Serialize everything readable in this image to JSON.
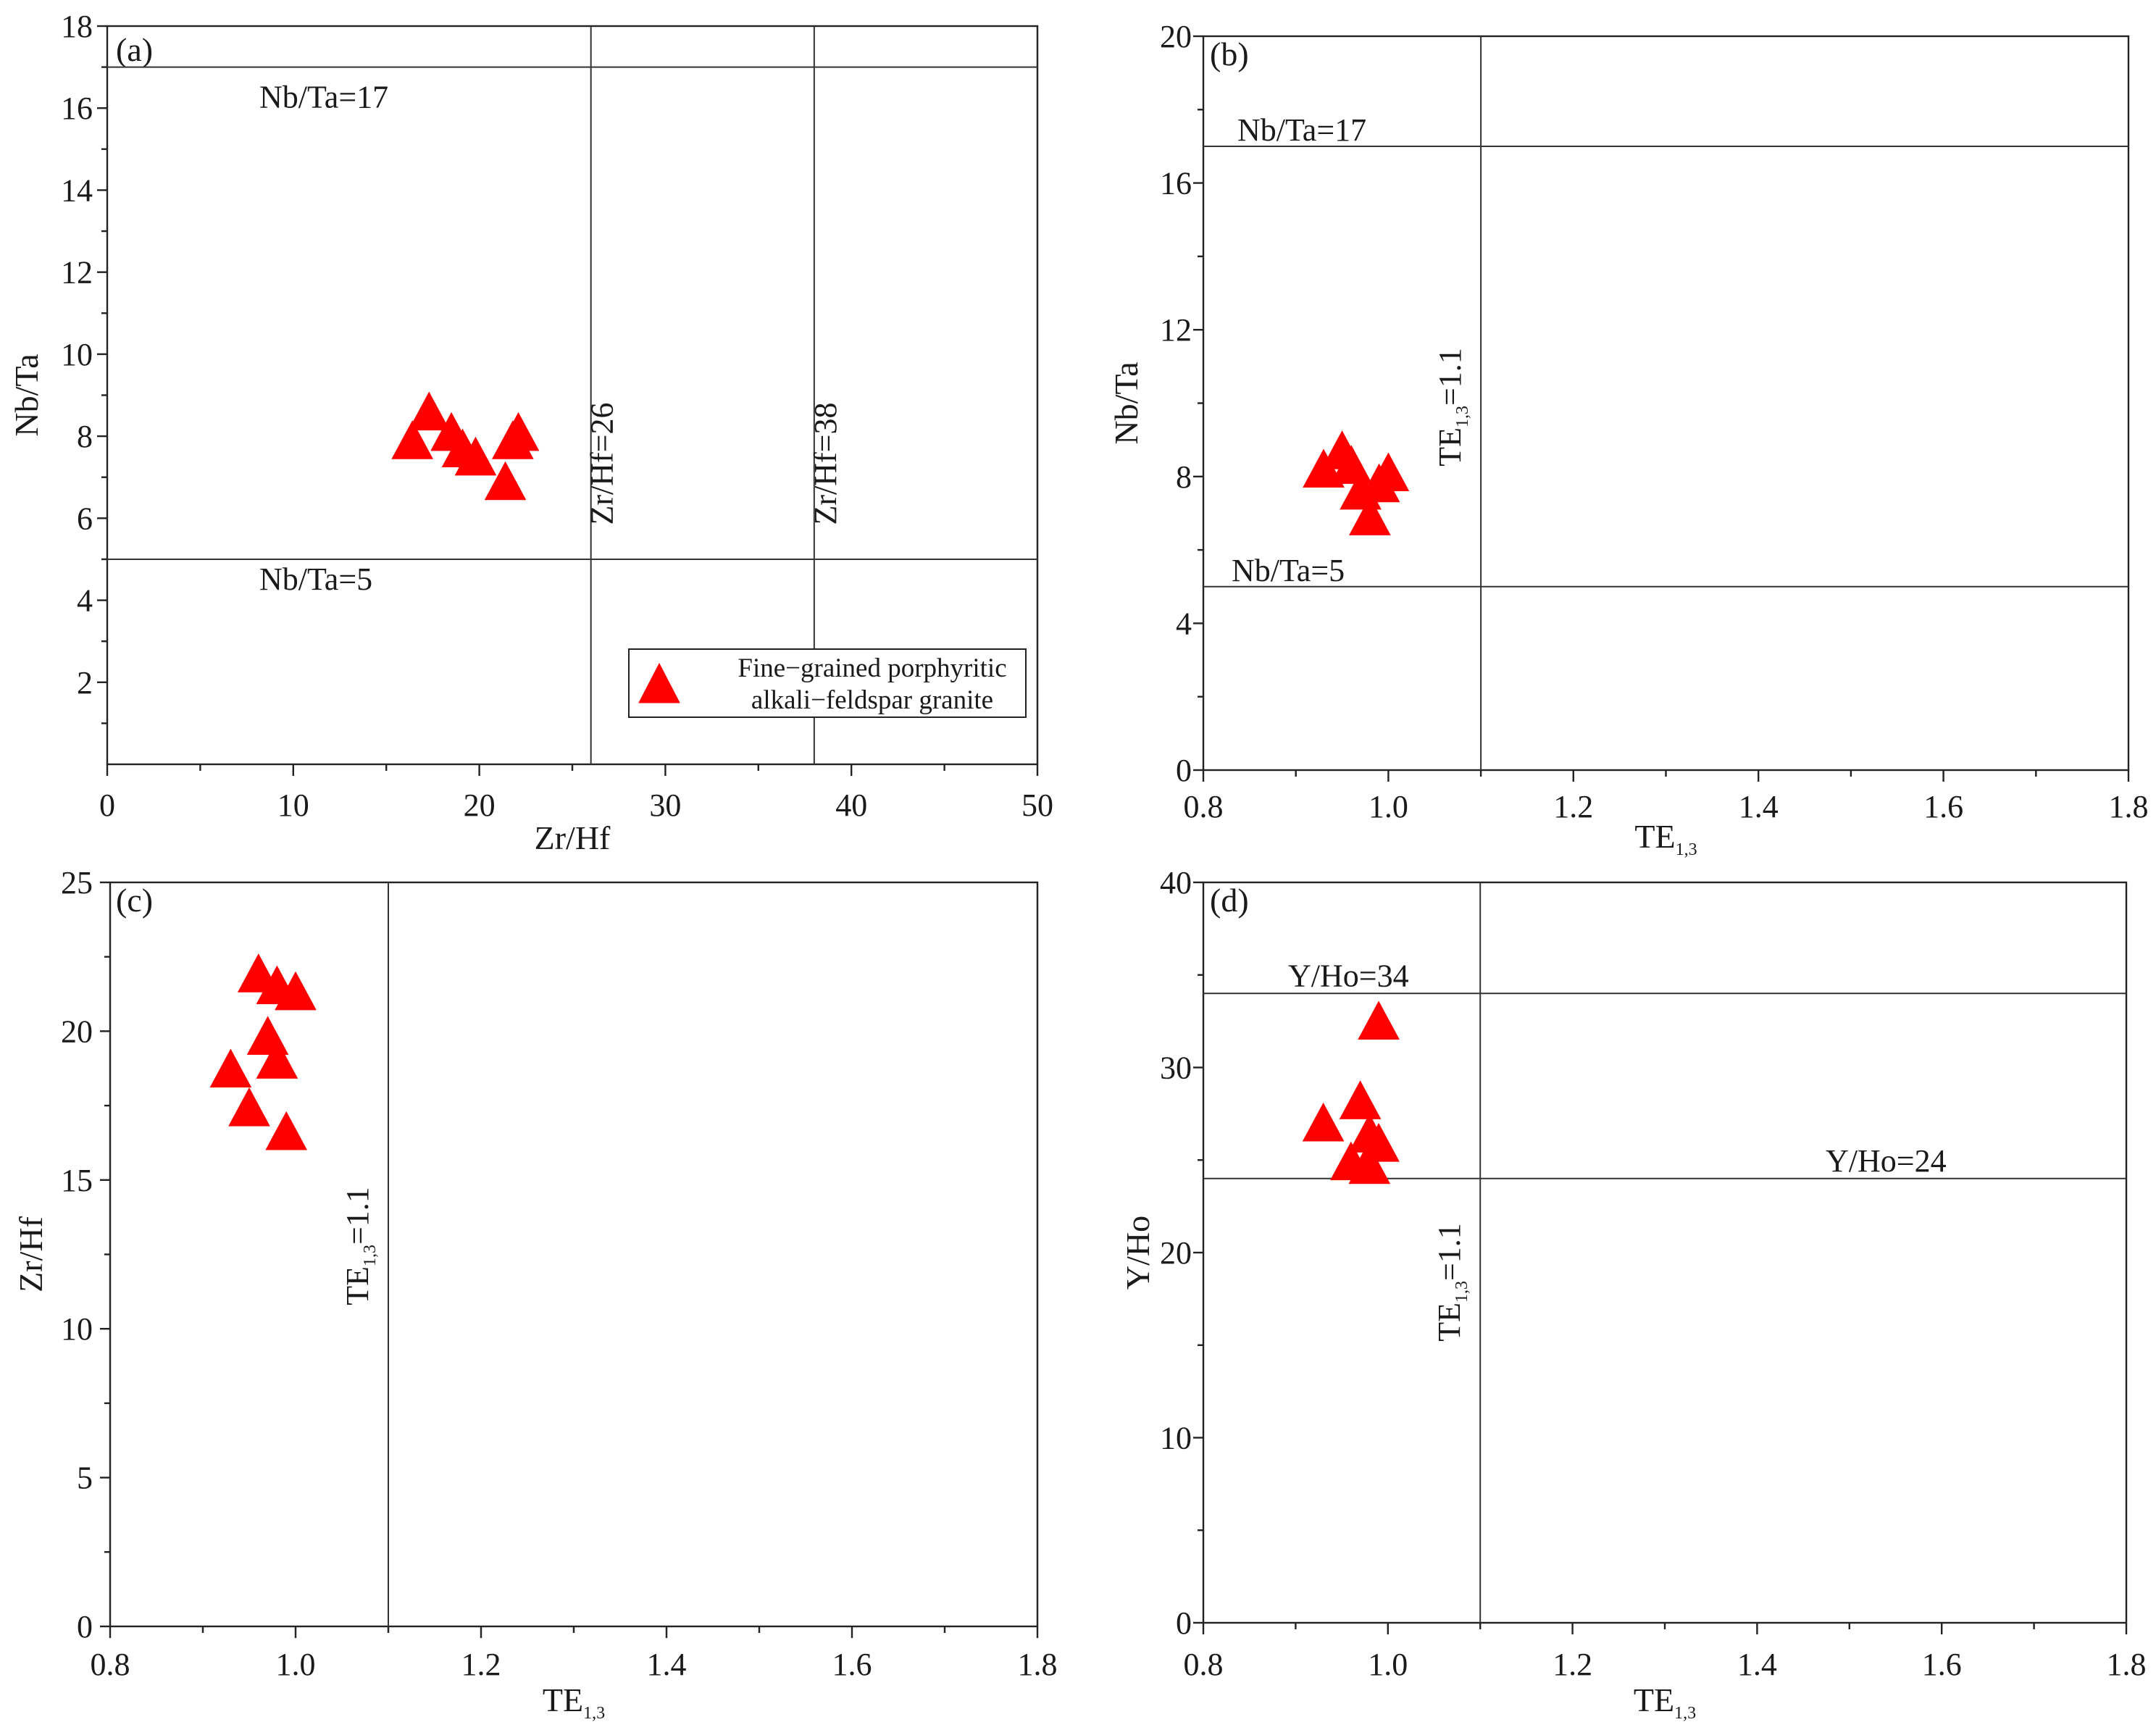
{
  "chart_data": [
    {
      "panel": "(a)",
      "type": "scatter",
      "xlabel": "Zr/Hf",
      "ylabel": "Nb/Ta",
      "xlim": [
        0,
        50
      ],
      "ylim": [
        0,
        18
      ],
      "xticks": [
        0,
        10,
        20,
        30,
        40,
        50
      ],
      "yticks": [
        2,
        4,
        6,
        8,
        10,
        12,
        14,
        16,
        18
      ],
      "hlines": [
        {
          "y": 17,
          "label": "Nb/Ta=17"
        },
        {
          "y": 5,
          "label": "Nb/Ta=5"
        }
      ],
      "vlines": [
        {
          "x": 26,
          "label": "Zr/Hf=26"
        },
        {
          "x": 38,
          "label": "Zr/Hf=38"
        }
      ],
      "legend": {
        "position": "bottom-right",
        "lines": [
          "Fine−grained porphyritic",
          "alkali−feldspar granite"
        ]
      },
      "series": [
        {
          "marker": "triangle",
          "color": "#ff0000",
          "x": [
            16.4,
            17.3,
            18.5,
            19.1,
            19.8,
            21.4,
            21.8,
            22.1
          ],
          "y": [
            7.8,
            8.5,
            8.0,
            7.6,
            7.4,
            6.8,
            7.8,
            8.0
          ]
        }
      ]
    },
    {
      "panel": "(b)",
      "type": "scatter",
      "xlabel": "TE",
      "xlabel_sub": "1,3",
      "ylabel": "Nb/Ta",
      "xlim": [
        0.8,
        1.8
      ],
      "ylim": [
        0,
        20
      ],
      "xticks": [
        0.8,
        1.0,
        1.2,
        1.4,
        1.6,
        1.8
      ],
      "yticks": [
        0,
        4,
        8,
        12,
        16,
        20
      ],
      "hlines": [
        {
          "y": 17,
          "label": "Nb/Ta=17"
        },
        {
          "y": 5,
          "label": "Nb/Ta=5"
        }
      ],
      "vlines": [
        {
          "x": 1.1,
          "label": "TE",
          "label_sub": "1,3",
          "label_suffix": "=1.1"
        }
      ],
      "series": [
        {
          "marker": "triangle",
          "color": "#ff0000",
          "x": [
            0.93,
            0.95,
            0.96,
            0.97,
            0.98,
            0.99,
            1.0
          ],
          "y": [
            8.1,
            8.6,
            8.2,
            7.5,
            6.8,
            7.7,
            8.0
          ]
        }
      ]
    },
    {
      "panel": "(c)",
      "type": "scatter",
      "xlabel": "TE",
      "xlabel_sub": "1,3",
      "ylabel": "Zr/Hf",
      "xlim": [
        0.8,
        1.8
      ],
      "ylim": [
        0,
        25
      ],
      "xticks": [
        0.8,
        1.0,
        1.2,
        1.4,
        1.6,
        1.8
      ],
      "yticks": [
        0,
        5,
        10,
        15,
        20,
        25
      ],
      "hlines": [],
      "vlines": [
        {
          "x": 1.1,
          "label": "TE",
          "label_sub": "1,3",
          "label_suffix": "=1.1"
        }
      ],
      "series": [
        {
          "marker": "triangle",
          "color": "#ff0000",
          "x": [
            0.96,
            0.98,
            1.0,
            0.97,
            0.98,
            0.93,
            0.95,
            0.99
          ],
          "y": [
            21.8,
            21.4,
            21.2,
            19.7,
            18.9,
            18.6,
            17.3,
            16.5
          ]
        }
      ]
    },
    {
      "panel": "(d)",
      "type": "scatter",
      "xlabel": "TE",
      "xlabel_sub": "1,3",
      "ylabel": "Y/Ho",
      "xlim": [
        0.8,
        1.8
      ],
      "ylim": [
        0,
        40
      ],
      "xticks": [
        0.8,
        1.0,
        1.2,
        1.4,
        1.6,
        1.8
      ],
      "yticks": [
        0,
        10,
        20,
        30,
        40
      ],
      "hlines": [
        {
          "y": 34,
          "label": "Y/Ho=34"
        },
        {
          "y": 24,
          "label": "Y/Ho=24"
        }
      ],
      "vlines": [
        {
          "x": 1.1,
          "label": "TE",
          "label_sub": "1,3",
          "label_suffix": "=1.1"
        }
      ],
      "series": [
        {
          "marker": "triangle",
          "color": "#ff0000",
          "x": [
            0.99,
            0.97,
            0.93,
            0.98,
            0.99,
            0.96,
            0.98
          ],
          "y": [
            32.3,
            28.0,
            26.8,
            26.2,
            25.7,
            24.7,
            24.5
          ]
        }
      ]
    }
  ]
}
